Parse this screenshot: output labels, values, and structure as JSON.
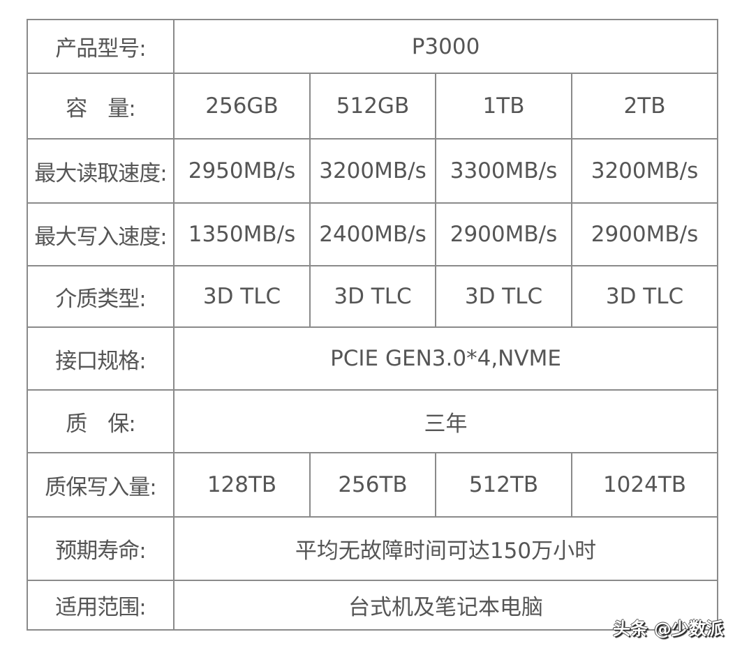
{
  "rows": [
    {
      "label": "产品型号:",
      "value": "P3000"
    },
    {
      "label": "容　量:",
      "values": [
        "256GB",
        "512GB",
        "1TB",
        "2TB"
      ]
    },
    {
      "label": "最大读取速度:",
      "values": [
        "2950MB/s",
        "3200MB/s",
        "3300MB/s",
        "3200MB/s"
      ]
    },
    {
      "label": "最大写入速度:",
      "values": [
        "1350MB/s",
        "2400MB/s",
        "2900MB/s",
        "2900MB/s"
      ]
    },
    {
      "label": "介质类型:",
      "values": [
        "3D TLC",
        "3D TLC",
        "3D TLC",
        "3D TLC"
      ]
    },
    {
      "label": "接口规格:",
      "value": "PCIE GEN3.0*4,NVME"
    },
    {
      "label": "质　保:",
      "value": "三年"
    },
    {
      "label": "质保写入量:",
      "values": [
        "128TB",
        "256TB",
        "512TB",
        "1024TB"
      ]
    },
    {
      "label": "预期寿命:",
      "value": "平均无故障时间可达150万小时"
    },
    {
      "label": "适用范围:",
      "value": "台式机及笔记本电脑"
    }
  ],
  "watermark": "头条 @少数派"
}
